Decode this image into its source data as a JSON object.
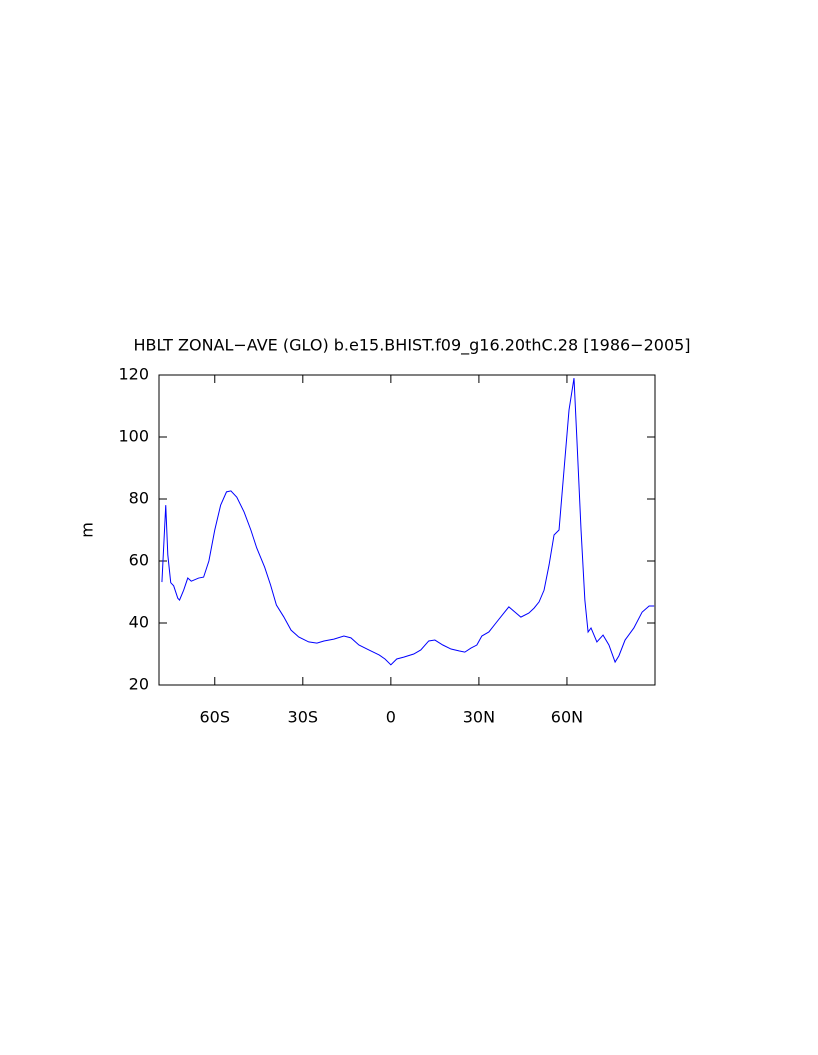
{
  "chart_data": {
    "type": "line",
    "title": "HBLT ZONAL−AVE (GLO) b.e15.BHIST.f09_g16.20thC.28 [1986−2005]",
    "y_label": "m",
    "xlim": [
      -79,
      90
    ],
    "ylim": [
      20,
      120
    ],
    "xticks": [
      {
        "value": -60,
        "label": "60S"
      },
      {
        "value": -30,
        "label": "30S"
      },
      0,
      {
        "value": 30,
        "label": "30N"
      },
      {
        "value": 60,
        "label": "60N"
      }
    ],
    "yticks": [
      20,
      40,
      60,
      80,
      100,
      120
    ],
    "x": [
      -78,
      -76.7,
      -76,
      -75,
      -74,
      -72.6,
      -72,
      -70.6,
      -69.2,
      -68,
      -65.5,
      -63.8,
      -62,
      -60,
      -58,
      -56,
      -54.5,
      -52.5,
      -50,
      -47.7,
      -45.7,
      -43,
      -41,
      -39,
      -36.5,
      -34,
      -31.4,
      -28,
      -25.2,
      -22.8,
      -19.4,
      -16,
      -13.6,
      -10.9,
      -7.5,
      -4,
      -2,
      0,
      2,
      4.4,
      7.8,
      10.2,
      12.9,
      15,
      17.7,
      20.5,
      23.2,
      25.2,
      27.3,
      29.3,
      31,
      33.4,
      35.8,
      38.5,
      40.2,
      42.3,
      44.3,
      47,
      48.8,
      50.5,
      52.2,
      53.9,
      55.6,
      57.3,
      59,
      60.7,
      62.4,
      63.4,
      64.8,
      66.1,
      67.2,
      68.2,
      70.2,
      72.3,
      74.3,
      76.4,
      77.7,
      79.8,
      82.8,
      85.6,
      88,
      89.7
    ],
    "series": [
      {
        "name": "HBLT",
        "color": "#0000ff",
        "values": [
          53.2,
          78,
          62,
          53,
          52,
          48,
          47.4,
          50.6,
          54.5,
          53.5,
          54.5,
          54.8,
          60,
          70,
          78,
          82.3,
          82.6,
          80.6,
          75.8,
          70,
          64.2,
          58,
          52.3,
          45.8,
          42,
          37.7,
          35.5,
          33.9,
          33.5,
          34.2,
          34.8,
          35.8,
          35.2,
          32.9,
          31.3,
          29.7,
          28.4,
          26.5,
          28.4,
          29,
          30,
          31.3,
          34.2,
          34.5,
          32.9,
          31.6,
          31,
          30.6,
          31.9,
          32.9,
          35.8,
          37.1,
          40,
          43.2,
          45.2,
          43.5,
          41.9,
          43.2,
          44.8,
          46.8,
          50.6,
          58.7,
          68.4,
          70,
          89.4,
          108.7,
          119,
          99,
          70,
          47.4,
          37.1,
          38.4,
          33.9,
          36.1,
          32.9,
          27.4,
          29.4,
          34.5,
          38.4,
          43.5,
          45.5,
          45.5
        ]
      }
    ]
  }
}
